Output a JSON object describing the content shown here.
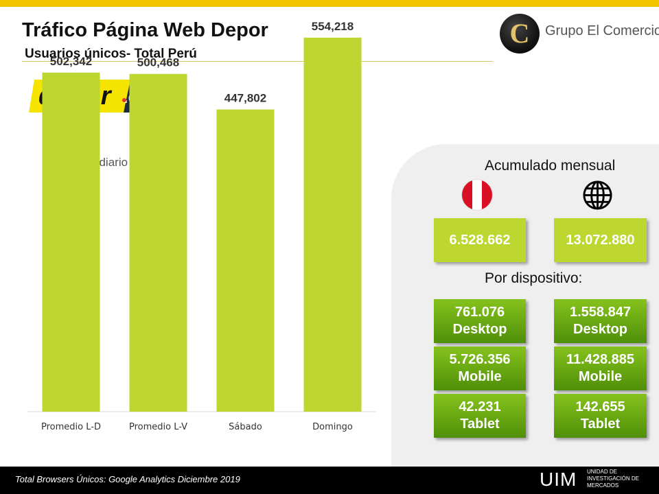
{
  "header": {
    "title": "Tráfico Página Web Depor",
    "subtitle": "Usuarios únicos- Total Perú"
  },
  "brand": {
    "initial": "C",
    "name": "Grupo El Comercio"
  },
  "logo": {
    "text": "depor",
    "suffix": ".com"
  },
  "chart_data": {
    "type": "bar",
    "title": "Promedio diario",
    "categories": [
      "Promedio L-D",
      "Promedio L-V",
      "Sábado",
      "Domingo"
    ],
    "values": [
      502342,
      500468,
      447802,
      554218
    ],
    "value_labels": [
      "502,342",
      "500,468",
      "447,802",
      "554,218"
    ],
    "ylim": [
      0,
      610000
    ],
    "grid": false,
    "color": "#bed630"
  },
  "acumulado": {
    "title": "Acumulado mensual",
    "peru_icon": "peru-flag-icon",
    "world_icon": "globe-icon",
    "peru": "6.528.662",
    "world": "13.072.880"
  },
  "dispositivo": {
    "title": "Por dispositivo:",
    "peru": [
      {
        "value": "761.076",
        "label": "Desktop"
      },
      {
        "value": "5.726.356",
        "label": "Mobile"
      },
      {
        "value": "42.231",
        "label": "Tablet"
      }
    ],
    "world": [
      {
        "value": "1.558.847",
        "label": "Desktop"
      },
      {
        "value": "11.428.885",
        "label": "Mobile"
      },
      {
        "value": "142.655",
        "label": "Tablet"
      }
    ]
  },
  "footer": {
    "note": "Total Browsers Únicos: Google Analytics Diciembre 2019",
    "uim": "UIM",
    "uim_line1": "UNIDAD DE",
    "uim_line2": "INVESTIGACIÓN DE",
    "uim_line3": "MERCADOS"
  },
  "colors": {
    "accent": "#f5c400",
    "bar": "#bed630",
    "box_dark": "#4f8f08",
    "box_light": "#86c21d",
    "peru_red": "#d91023"
  }
}
